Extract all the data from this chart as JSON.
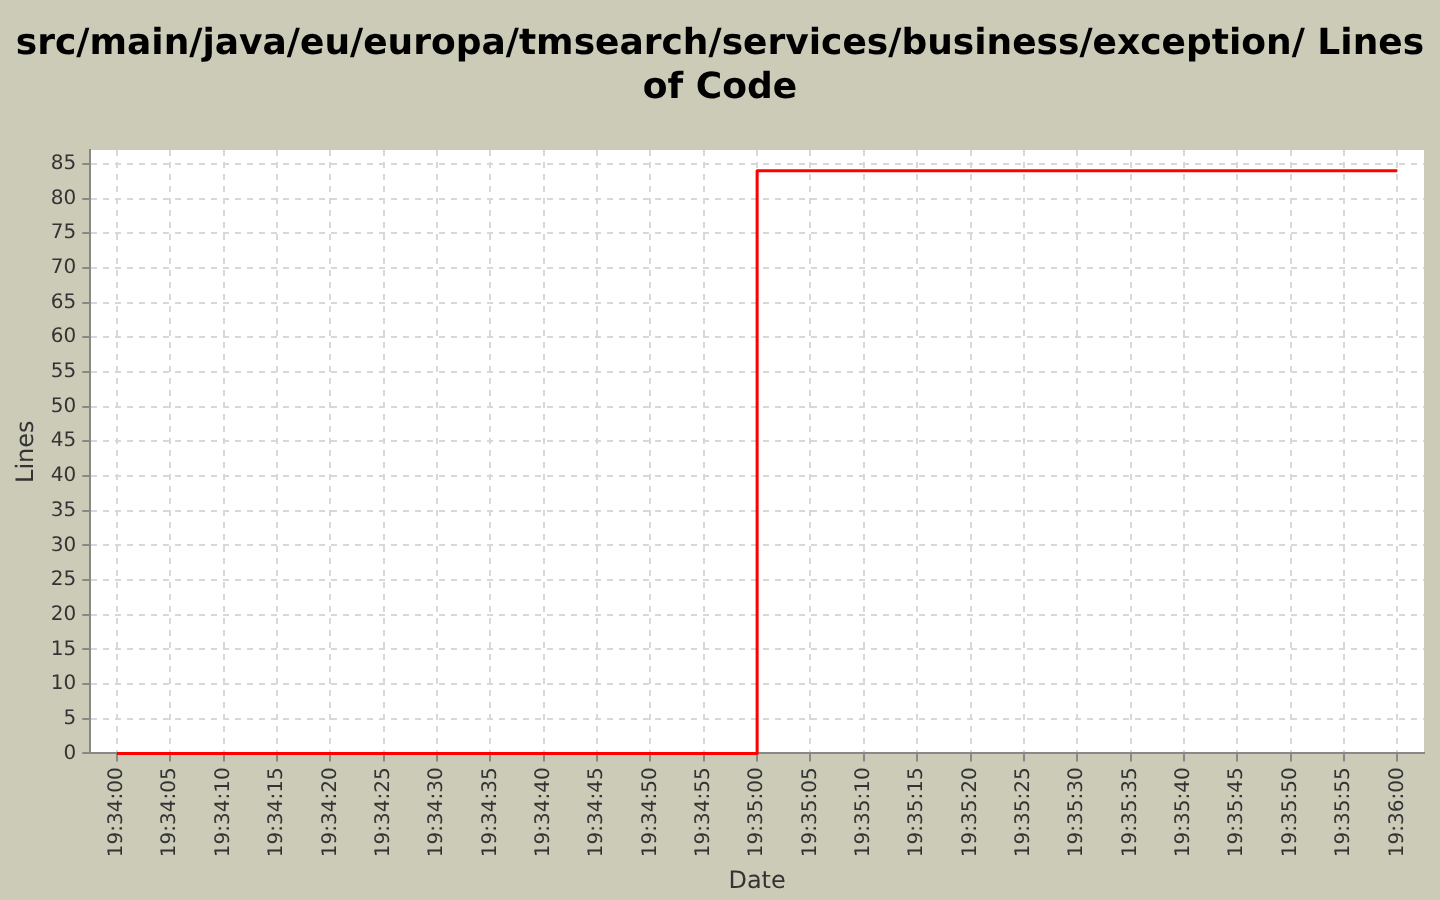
{
  "chart_data": {
    "type": "step",
    "title": "src/main/java/eu/europa/tmsearch/services/business/exception/ Lines of Code",
    "xlabel": "Date",
    "ylabel": "Lines",
    "x": [
      19.566667,
      19.583333,
      19.6
    ],
    "series": [
      {
        "color": "#ff0000",
        "values": [
          0,
          84,
          84
        ]
      }
    ],
    "xlim": [
      19.565972,
      19.600694
    ],
    "xticks": [
      {
        "value": 19.566667,
        "label": "19:34:00"
      },
      {
        "value": 19.568056,
        "label": "19:34:05"
      },
      {
        "value": 19.569444,
        "label": "19:34:10"
      },
      {
        "value": 19.570833,
        "label": "19:34:15"
      },
      {
        "value": 19.572222,
        "label": "19:34:20"
      },
      {
        "value": 19.573611,
        "label": "19:34:25"
      },
      {
        "value": 19.575,
        "label": "19:34:30"
      },
      {
        "value": 19.576389,
        "label": "19:34:35"
      },
      {
        "value": 19.577778,
        "label": "19:34:40"
      },
      {
        "value": 19.579167,
        "label": "19:34:45"
      },
      {
        "value": 19.580556,
        "label": "19:34:50"
      },
      {
        "value": 19.581944,
        "label": "19:34:55"
      },
      {
        "value": 19.583333,
        "label": "19:35:00"
      },
      {
        "value": 19.584722,
        "label": "19:35:05"
      },
      {
        "value": 19.586111,
        "label": "19:35:10"
      },
      {
        "value": 19.5875,
        "label": "19:35:15"
      },
      {
        "value": 19.588889,
        "label": "19:35:20"
      },
      {
        "value": 19.590278,
        "label": "19:35:25"
      },
      {
        "value": 19.591667,
        "label": "19:35:30"
      },
      {
        "value": 19.593056,
        "label": "19:35:35"
      },
      {
        "value": 19.594444,
        "label": "19:35:40"
      },
      {
        "value": 19.595833,
        "label": "19:35:45"
      },
      {
        "value": 19.597222,
        "label": "19:35:50"
      },
      {
        "value": 19.598611,
        "label": "19:35:55"
      },
      {
        "value": 19.6,
        "label": "19:36:00"
      }
    ],
    "ylim": [
      0,
      87
    ],
    "yticks": [
      0,
      5,
      10,
      15,
      20,
      25,
      30,
      35,
      40,
      45,
      50,
      55,
      60,
      65,
      70,
      75,
      80,
      85
    ],
    "grid": true,
    "marker": "none",
    "line_style": "solid"
  }
}
